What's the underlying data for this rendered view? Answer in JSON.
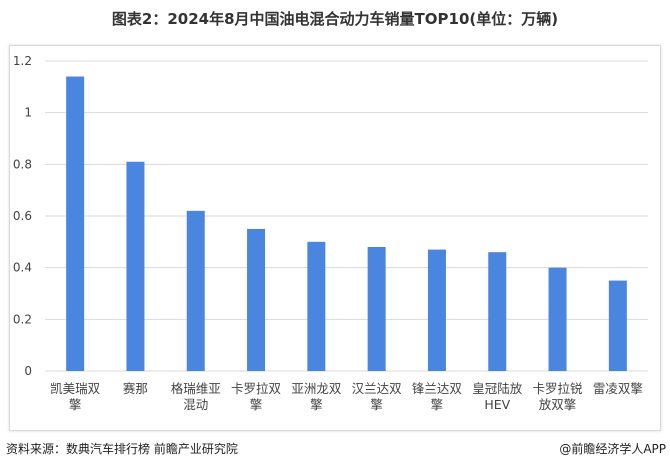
{
  "chart_data": {
    "type": "bar",
    "title": "图表2：2024年8月中国油电混合动力车销量TOP10(单位：万辆)",
    "categories": [
      "凯美瑞双擎",
      "赛那",
      "格瑞维亚混动",
      "卡罗拉双擎",
      "亚洲龙双擎",
      "汉兰达双擎",
      "锋兰达双擎",
      "皇冠陆放HEV",
      "卡罗拉锐放双擎",
      "雷凌双擎"
    ],
    "values": [
      1.14,
      0.81,
      0.62,
      0.55,
      0.5,
      0.48,
      0.47,
      0.46,
      0.4,
      0.35
    ],
    "ylim": [
      0,
      1.2
    ],
    "yticks": [
      "0",
      "0.2",
      "0.4",
      "0.6",
      "0.8",
      "1",
      "1.2"
    ],
    "grid": true,
    "bar_color": "#4a86e0"
  },
  "source": "资料来源：数典汽车排行榜 前瞻产业研究院",
  "credit": "@前瞻经济学人APP"
}
